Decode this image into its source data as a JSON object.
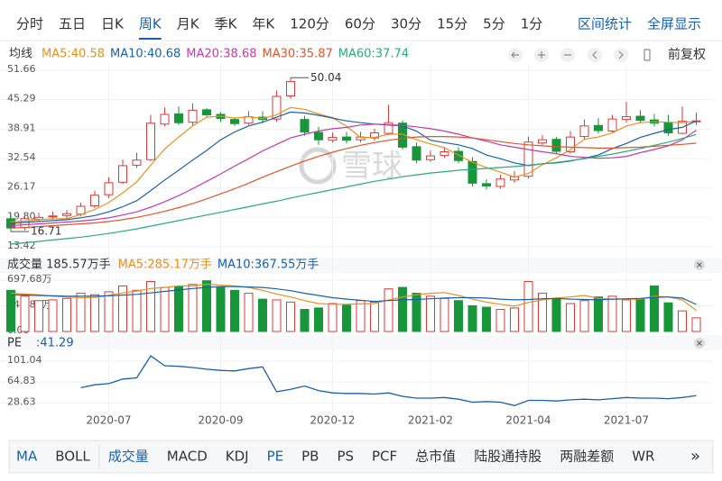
{
  "toolbar": {
    "periods": [
      "分时",
      "五日",
      "日K",
      "周K",
      "月K",
      "季K",
      "年K",
      "120分",
      "60分",
      "30分",
      "15分",
      "5分",
      "1分"
    ],
    "selected": 3,
    "actions": [
      "区间统计",
      "全屏显示"
    ],
    "adjust": "前复权"
  },
  "indicators": {
    "tabs": [
      "MA",
      "BOLL",
      "成交量",
      "MACD",
      "KDJ",
      "PE",
      "PB",
      "PS",
      "PCF",
      "总市值",
      "陆股通持股",
      "两融差额",
      "WR"
    ],
    "active": [
      0,
      2,
      5
    ]
  },
  "chart_data": [
    {
      "type": "candlestick",
      "legend_title": "均线",
      "watermark": "雪球",
      "up_color": "#d93a3a",
      "down_color": "#17963a",
      "grid": true,
      "ylim": [
        12.25,
        52.83
      ],
      "yticks": [
        51.66,
        45.29,
        38.91,
        32.54,
        26.17,
        {
          "value": 19.8,
          "label": "19.80"
        },
        13.42
      ],
      "ohlc": [
        [
          19.5,
          20.5,
          16.71,
          17.5
        ],
        [
          17.6,
          20.2,
          17.0,
          19.5
        ],
        [
          19.4,
          20.8,
          18.8,
          19.8
        ],
        [
          19.9,
          21.0,
          19.3,
          20.1
        ],
        [
          20.2,
          21.4,
          19.6,
          20.6
        ],
        [
          20.5,
          23.0,
          20.0,
          22.2
        ],
        [
          22.3,
          25.6,
          21.8,
          24.6
        ],
        [
          24.7,
          28.5,
          24.0,
          27.3
        ],
        [
          27.4,
          32.3,
          27.0,
          31.0
        ],
        [
          31.1,
          33.8,
          30.5,
          32.2
        ],
        [
          32.3,
          42.0,
          32.0,
          40.2
        ],
        [
          40.0,
          43.6,
          39.5,
          42.1
        ],
        [
          42.2,
          43.8,
          39.8,
          40.3
        ],
        [
          40.4,
          44.5,
          39.7,
          43.0
        ],
        [
          43.1,
          43.5,
          41.5,
          42.0
        ],
        [
          42.1,
          42.6,
          40.5,
          41.2
        ],
        [
          41.0,
          41.5,
          39.6,
          40.1
        ],
        [
          40.2,
          42.8,
          39.8,
          41.6
        ],
        [
          41.5,
          42.8,
          40.2,
          41.0
        ],
        [
          41.1,
          47.3,
          40.5,
          46.0
        ],
        [
          46.1,
          50.04,
          45.5,
          49.2
        ],
        [
          41.0,
          41.8,
          37.5,
          38.3
        ],
        [
          38.2,
          39.4,
          35.5,
          36.6
        ],
        [
          36.5,
          38.2,
          36.0,
          37.1
        ],
        [
          37.2,
          38.3,
          35.8,
          36.5
        ],
        [
          36.6,
          38.3,
          36.0,
          37.2
        ],
        [
          37.0,
          39.0,
          36.4,
          38.1
        ],
        [
          38.0,
          44.2,
          37.6,
          40.3
        ],
        [
          40.2,
          40.8,
          34.5,
          35.0
        ],
        [
          35.1,
          36.0,
          31.5,
          32.2
        ],
        [
          32.3,
          34.3,
          31.8,
          33.1
        ],
        [
          33.2,
          35.0,
          32.7,
          34.0
        ],
        [
          34.1,
          35.0,
          31.5,
          32.1
        ],
        [
          31.9,
          32.8,
          26.5,
          27.2
        ],
        [
          27.1,
          28.0,
          25.8,
          26.6
        ],
        [
          26.5,
          29.0,
          26.0,
          28.1
        ],
        [
          27.9,
          29.8,
          27.3,
          28.6
        ],
        [
          28.7,
          37.3,
          28.2,
          36.1
        ],
        [
          35.9,
          37.6,
          35.5,
          36.6
        ],
        [
          36.7,
          37.2,
          33.5,
          34.1
        ],
        [
          34.0,
          38.5,
          33.6,
          37.2
        ],
        [
          37.3,
          41.0,
          36.6,
          39.6
        ],
        [
          39.7,
          41.3,
          38.0,
          38.6
        ],
        [
          38.5,
          42.0,
          38.0,
          41.1
        ],
        [
          41.0,
          44.8,
          40.3,
          41.6
        ],
        [
          41.7,
          43.0,
          40.2,
          40.8
        ],
        [
          40.9,
          42.2,
          39.5,
          40.2
        ],
        [
          40.3,
          42.0,
          37.5,
          38.1
        ],
        [
          38.0,
          43.8,
          37.8,
          40.6
        ],
        [
          40.5,
          42.5,
          39.8,
          40.7
        ]
      ],
      "series": [
        {
          "name": "MA5:40.58",
          "color": "#e8901e",
          "values": [
            18.8,
            19.0,
            19.3,
            19.5,
            19.5,
            20.4,
            21.5,
            23.0,
            25.1,
            27.5,
            31.1,
            34.6,
            37.2,
            39.6,
            41.5,
            41.7,
            41.3,
            41.6,
            41.2,
            42.0,
            43.6,
            43.2,
            42.2,
            41.4,
            39.5,
            37.1,
            37.1,
            37.8,
            37.8,
            36.6,
            35.7,
            34.9,
            33.3,
            31.7,
            30.6,
            29.6,
            28.5,
            29.3,
            31.2,
            32.7,
            34.5,
            36.7,
            37.2,
            38.1,
            39.6,
            40.3,
            40.5,
            40.4,
            40.3,
            40.58
          ]
        },
        {
          "name": "MA10:40.68",
          "color": "#1a5fa8",
          "values": [
            18.5,
            18.7,
            18.9,
            19.1,
            19.3,
            19.7,
            20.2,
            21.0,
            22.1,
            23.4,
            25.6,
            27.9,
            30.0,
            32.2,
            34.3,
            36.6,
            38.3,
            39.6,
            40.4,
            41.5,
            42.6,
            42.4,
            41.9,
            41.3,
            40.7,
            40.3,
            40.0,
            39.8,
            39.6,
            38.5,
            36.5,
            36.0,
            35.5,
            34.7,
            33.3,
            32.5,
            31.6,
            31.0,
            31.4,
            31.6,
            32.0,
            32.6,
            33.3,
            34.7,
            35.8,
            37.1,
            38.0,
            38.8,
            39.3,
            40.68
          ]
        },
        {
          "name": "MA20:38.68",
          "color": "#c23aa8",
          "values": [
            18.0,
            18.2,
            18.4,
            18.6,
            18.8,
            19.0,
            19.3,
            19.7,
            20.3,
            21.0,
            22.0,
            23.2,
            24.5,
            26.0,
            27.6,
            29.2,
            30.9,
            32.5,
            34.2,
            35.6,
            37.0,
            37.8,
            38.5,
            39.0,
            39.3,
            39.8,
            40.0,
            39.9,
            39.7,
            39.4,
            39.0,
            38.5,
            37.8,
            37.0,
            36.3,
            35.5,
            35.0,
            34.5,
            34.0,
            33.6,
            33.0,
            32.8,
            32.6,
            32.7,
            33.0,
            33.8,
            34.5,
            35.3,
            36.6,
            38.68
          ]
        },
        {
          "name": "MA30:35.87",
          "color": "#e0552e",
          "values": [
            17.5,
            17.6,
            17.8,
            18.0,
            18.2,
            18.4,
            18.6,
            18.9,
            19.3,
            19.8,
            20.4,
            21.1,
            21.9,
            22.8,
            23.8,
            24.9,
            26.0,
            27.2,
            28.5,
            29.7,
            30.9,
            32.0,
            33.0,
            33.9,
            34.7,
            35.4,
            36.0,
            36.5,
            36.9,
            37.2,
            37.3,
            37.3,
            37.2,
            37.0,
            36.6,
            36.2,
            35.8,
            35.5,
            35.3,
            35.1,
            35.0,
            34.9,
            34.8,
            34.8,
            34.9,
            35.0,
            35.2,
            35.4,
            35.6,
            35.87
          ]
        },
        {
          "name": "MA60:37.74",
          "color": "#2aab7a",
          "values": [
            14.0,
            14.3,
            14.6,
            14.9,
            15.2,
            15.5,
            15.9,
            16.3,
            16.8,
            17.3,
            17.9,
            18.5,
            19.1,
            19.7,
            20.3,
            20.9,
            21.5,
            22.1,
            22.7,
            23.3,
            24.0,
            24.6,
            25.2,
            25.8,
            26.4,
            27.0,
            27.6,
            28.1,
            28.6,
            29.0,
            29.4,
            29.7,
            30.0,
            30.2,
            30.4,
            30.6,
            30.8,
            31.1,
            31.4,
            31.7,
            32.1,
            32.5,
            33.0,
            33.5,
            34.1,
            34.7,
            35.4,
            36.1,
            36.9,
            37.74
          ]
        }
      ]
    },
    {
      "type": "bar",
      "title": "成交量 185.57万手",
      "ylim": [
        0,
        760
      ],
      "yticks": [
        {
          "value": 697.68,
          "label": "697.68万"
        },
        {
          "value": 348.84,
          "label": "348.84万"
        },
        {
          "value": 0,
          "label": "0.00"
        }
      ],
      "values": [
        560,
        480,
        420,
        430,
        450,
        520,
        500,
        540,
        620,
        560,
        680,
        600,
        610,
        640,
        690,
        600,
        560,
        520,
        440,
        430,
        400,
        300,
        320,
        380,
        360,
        420,
        400,
        580,
        600,
        520,
        480,
        450,
        420,
        350,
        330,
        300,
        320,
        680,
        520,
        440,
        380,
        420,
        470,
        480,
        430,
        440,
        620,
        390,
        280,
        185.57
      ],
      "series": [
        {
          "name": "MA5:285.17万手",
          "color": "#e8901e",
          "values": [
            520,
            510,
            500,
            480,
            470,
            460,
            465,
            490,
            525,
            550,
            585,
            600,
            620,
            620,
            645,
            630,
            620,
            600,
            560,
            510,
            470,
            420,
            380,
            370,
            370,
            375,
            380,
            430,
            470,
            500,
            520,
            530,
            490,
            440,
            400,
            370,
            345,
            395,
            430,
            455,
            470,
            490,
            450,
            440,
            440,
            440,
            480,
            470,
            430,
            285.17
          ]
        },
        {
          "name": "MA10:367.55万手",
          "color": "#1a5fa8",
          "values": [
            500,
            495,
            490,
            485,
            480,
            480,
            480,
            485,
            495,
            505,
            525,
            545,
            565,
            585,
            600,
            610,
            610,
            605,
            600,
            580,
            555,
            520,
            490,
            460,
            440,
            425,
            410,
            420,
            430,
            435,
            445,
            455,
            460,
            460,
            455,
            440,
            430,
            435,
            445,
            450,
            440,
            435,
            430,
            440,
            445,
            450,
            465,
            470,
            455,
            367.55
          ]
        }
      ]
    },
    {
      "type": "line",
      "title": "PE",
      "current_label": ":41.29",
      "color": "#1a5fa8",
      "ylim": [
        12,
        118
      ],
      "yticks": [
        101.04,
        64.83,
        28.63
      ],
      "xticks": [
        {
          "value": 7,
          "label": "2020-07"
        },
        {
          "value": 15,
          "label": "2020-09"
        },
        {
          "value": 23,
          "label": "2020-12"
        },
        {
          "value": 30,
          "label": "2021-02"
        },
        {
          "value": 37,
          "label": "2021-04"
        },
        {
          "value": 44,
          "label": "2021-07"
        }
      ],
      "values": [
        null,
        null,
        null,
        null,
        null,
        55,
        60,
        62,
        70,
        72,
        110,
        93,
        92,
        90,
        87,
        85,
        84,
        88,
        91,
        48,
        52,
        58,
        50,
        46,
        45,
        45,
        44,
        46,
        40,
        37,
        37,
        38,
        35,
        30,
        31,
        30,
        24,
        33,
        33,
        32,
        34,
        35,
        34,
        36,
        38,
        37,
        37,
        36,
        38,
        41.29
      ]
    }
  ]
}
